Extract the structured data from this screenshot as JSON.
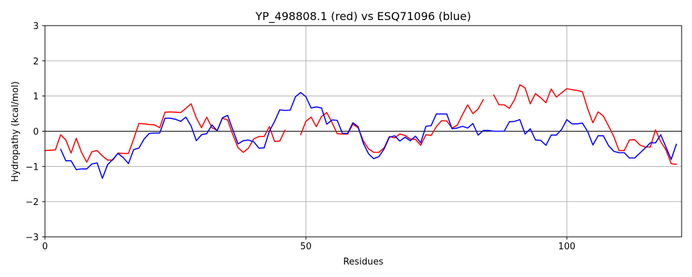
{
  "chart_data": {
    "type": "line",
    "title": "YP_498808.1 (red) vs ESQ71096 (blue)",
    "xlabel": "Residues",
    "ylabel": "Hydropathy (kcal/mol)",
    "xlim": [
      0,
      122
    ],
    "ylim": [
      -3,
      3
    ],
    "xticks": [
      0,
      50,
      100
    ],
    "yticks": [
      -3,
      -2,
      -1,
      0,
      1,
      2,
      3
    ],
    "grid": "vertical lines at x ticks, horizontal lines at y = -1, 0, 1, 2",
    "colors": {
      "red": "#ff0000",
      "blue": "#0000ff",
      "axis": "#000000",
      "grid": "#b0b0b0"
    },
    "series": [
      {
        "color": "#ff0000",
        "segments": [
          [
            [
              0,
              -0.55
            ],
            [
              1,
              -0.54
            ],
            [
              2,
              -0.53
            ],
            [
              3,
              -0.1
            ],
            [
              4,
              -0.25
            ],
            [
              5,
              -0.62
            ],
            [
              6,
              -0.2
            ],
            [
              7,
              -0.6
            ],
            [
              8,
              -0.88
            ],
            [
              9,
              -0.58
            ],
            [
              10,
              -0.55
            ],
            [
              11,
              -0.7
            ],
            [
              12,
              -0.82
            ],
            [
              13,
              -0.82
            ],
            [
              14,
              -0.62
            ],
            [
              15,
              -0.63
            ],
            [
              16,
              -0.63
            ],
            [
              17,
              -0.22
            ],
            [
              18,
              0.22
            ],
            [
              19,
              0.21
            ],
            [
              20,
              0.19
            ],
            [
              21,
              0.18
            ],
            [
              22,
              0.1
            ],
            [
              23,
              0.54
            ],
            [
              24,
              0.55
            ],
            [
              25,
              0.54
            ],
            [
              26,
              0.53
            ],
            [
              27,
              0.65
            ],
            [
              28,
              0.78
            ],
            [
              29,
              0.38
            ],
            [
              30,
              0.1
            ],
            [
              31,
              0.4
            ],
            [
              32,
              0.1
            ],
            [
              33,
              0.02
            ],
            [
              34,
              0.37
            ],
            [
              35,
              0.32
            ],
            [
              36,
              -0.1
            ],
            [
              37,
              -0.47
            ],
            [
              38,
              -0.6
            ],
            [
              39,
              -0.48
            ],
            [
              40,
              -0.22
            ],
            [
              41,
              -0.15
            ],
            [
              42,
              -0.15
            ],
            [
              43,
              0.13
            ],
            [
              44,
              -0.29
            ],
            [
              45,
              -0.28
            ],
            [
              46,
              0.03
            ]
          ],
          [
            [
              49,
              -0.1
            ],
            [
              50,
              0.28
            ],
            [
              51,
              0.4
            ],
            [
              52,
              0.13
            ],
            [
              53,
              0.42
            ],
            [
              54,
              0.53
            ],
            [
              55,
              0.25
            ],
            [
              56,
              -0.07
            ],
            [
              57,
              -0.08
            ],
            [
              58,
              -0.08
            ],
            [
              59,
              0.2
            ],
            [
              60,
              0.1
            ],
            [
              61,
              -0.27
            ],
            [
              62,
              -0.5
            ],
            [
              63,
              -0.6
            ],
            [
              64,
              -0.6
            ],
            [
              65,
              -0.47
            ],
            [
              66,
              -0.15
            ],
            [
              67,
              -0.19
            ],
            [
              68,
              -0.08
            ],
            [
              69,
              -0.12
            ],
            [
              70,
              -0.22
            ],
            [
              71,
              -0.23
            ],
            [
              72,
              -0.4
            ],
            [
              73,
              -0.1
            ],
            [
              74,
              -0.12
            ],
            [
              75,
              0.13
            ],
            [
              76,
              0.3
            ],
            [
              77,
              0.29
            ],
            [
              78,
              0.09
            ],
            [
              79,
              0.17
            ],
            [
              80,
              0.47
            ],
            [
              81,
              0.75
            ],
            [
              82,
              0.5
            ],
            [
              83,
              0.63
            ],
            [
              84,
              0.9
            ]
          ],
          [
            [
              86,
              1.03
            ],
            [
              87,
              0.75
            ],
            [
              88,
              0.75
            ],
            [
              89,
              0.65
            ],
            [
              90,
              0.9
            ],
            [
              91,
              1.32
            ],
            [
              92,
              1.23
            ],
            [
              93,
              0.78
            ],
            [
              94,
              1.07
            ],
            [
              95,
              0.95
            ],
            [
              96,
              0.81
            ],
            [
              97,
              1.2
            ],
            [
              98,
              0.97
            ],
            [
              99,
              1.09
            ],
            [
              100,
              1.21
            ],
            [
              101,
              1.18
            ],
            [
              102,
              1.16
            ],
            [
              103,
              1.12
            ],
            [
              104,
              0.64
            ],
            [
              105,
              0.24
            ],
            [
              106,
              0.55
            ],
            [
              107,
              0.43
            ],
            [
              108,
              0.15
            ],
            [
              109,
              -0.15
            ],
            [
              110,
              -0.55
            ],
            [
              111,
              -0.55
            ],
            [
              112,
              -0.25
            ],
            [
              113,
              -0.24
            ],
            [
              114,
              -0.39
            ],
            [
              115,
              -0.45
            ],
            [
              116,
              -0.45
            ],
            [
              117,
              0.04
            ],
            [
              118,
              -0.3
            ],
            [
              119,
              -0.53
            ],
            [
              120,
              -0.92
            ],
            [
              121,
              -0.94
            ]
          ]
        ]
      },
      {
        "color": "#0000ff",
        "segments": [
          [
            [
              3,
              -0.51
            ],
            [
              4,
              -0.84
            ],
            [
              5,
              -0.84
            ],
            [
              6,
              -1.09
            ],
            [
              7,
              -1.07
            ],
            [
              8,
              -1.07
            ],
            [
              9,
              -0.93
            ],
            [
              10,
              -0.9
            ],
            [
              11,
              -1.34
            ],
            [
              12,
              -0.95
            ],
            [
              13,
              -0.8
            ],
            [
              14,
              -0.63
            ],
            [
              15,
              -0.75
            ],
            [
              16,
              -0.92
            ],
            [
              17,
              -0.52
            ],
            [
              18,
              -0.48
            ],
            [
              19,
              -0.22
            ],
            [
              20,
              -0.06
            ],
            [
              21,
              -0.05
            ],
            [
              22,
              -0.05
            ],
            [
              23,
              0.37
            ],
            [
              24,
              0.37
            ],
            [
              25,
              0.34
            ],
            [
              26,
              0.28
            ],
            [
              27,
              0.4
            ],
            [
              28,
              0.15
            ],
            [
              29,
              -0.27
            ],
            [
              30,
              -0.1
            ],
            [
              31,
              -0.07
            ],
            [
              32,
              0.18
            ],
            [
              33,
              0.01
            ],
            [
              34,
              0.38
            ],
            [
              35,
              0.45
            ],
            [
              36,
              0.04
            ],
            [
              37,
              -0.36
            ],
            [
              38,
              -0.27
            ],
            [
              39,
              -0.25
            ],
            [
              40,
              -0.3
            ],
            [
              41,
              -0.48
            ],
            [
              42,
              -0.47
            ],
            [
              43,
              0.0
            ],
            [
              44,
              0.28
            ],
            [
              45,
              0.61
            ],
            [
              46,
              0.59
            ],
            [
              47,
              0.6
            ],
            [
              48,
              0.98
            ],
            [
              49,
              1.1
            ],
            [
              50,
              0.98
            ],
            [
              51,
              0.66
            ],
            [
              52,
              0.69
            ],
            [
              53,
              0.66
            ],
            [
              54,
              0.2
            ],
            [
              55,
              0.32
            ],
            [
              56,
              0.31
            ],
            [
              57,
              -0.06
            ],
            [
              58,
              -0.06
            ],
            [
              59,
              0.24
            ],
            [
              60,
              0.13
            ],
            [
              61,
              -0.34
            ],
            [
              62,
              -0.64
            ],
            [
              63,
              -0.78
            ],
            [
              64,
              -0.72
            ],
            [
              65,
              -0.5
            ],
            [
              66,
              -0.17
            ],
            [
              67,
              -0.13
            ],
            [
              68,
              -0.28
            ],
            [
              69,
              -0.17
            ],
            [
              70,
              -0.27
            ],
            [
              71,
              -0.14
            ],
            [
              72,
              -0.33
            ],
            [
              73,
              0.14
            ],
            [
              74,
              0.16
            ],
            [
              75,
              0.49
            ],
            [
              76,
              0.49
            ],
            [
              77,
              0.49
            ],
            [
              78,
              0.07
            ],
            [
              79,
              0.09
            ],
            [
              80,
              0.14
            ],
            [
              81,
              0.09
            ],
            [
              82,
              0.22
            ],
            [
              83,
              -0.11
            ],
            [
              84,
              0.02
            ],
            [
              85,
              0.02
            ],
            [
              86,
              0.0
            ],
            [
              87,
              0.0
            ],
            [
              88,
              0.0
            ],
            [
              89,
              0.27
            ],
            [
              90,
              0.28
            ],
            [
              91,
              0.33
            ],
            [
              92,
              -0.08
            ],
            [
              93,
              0.07
            ],
            [
              94,
              -0.25
            ],
            [
              95,
              -0.26
            ],
            [
              96,
              -0.4
            ],
            [
              97,
              -0.11
            ],
            [
              98,
              -0.11
            ],
            [
              99,
              0.05
            ],
            [
              100,
              0.33
            ],
            [
              101,
              0.21
            ],
            [
              102,
              0.21
            ],
            [
              103,
              0.23
            ],
            [
              104,
              -0.01
            ],
            [
              105,
              -0.39
            ],
            [
              106,
              -0.13
            ],
            [
              107,
              -0.13
            ],
            [
              108,
              -0.41
            ],
            [
              109,
              -0.57
            ],
            [
              110,
              -0.61
            ],
            [
              111,
              -0.61
            ],
            [
              112,
              -0.76
            ],
            [
              113,
              -0.76
            ],
            [
              114,
              -0.62
            ],
            [
              115,
              -0.48
            ],
            [
              116,
              -0.33
            ],
            [
              117,
              -0.33
            ],
            [
              118,
              -0.1
            ],
            [
              119,
              -0.45
            ],
            [
              120,
              -0.8
            ],
            [
              121,
              -0.37
            ]
          ]
        ]
      }
    ]
  }
}
